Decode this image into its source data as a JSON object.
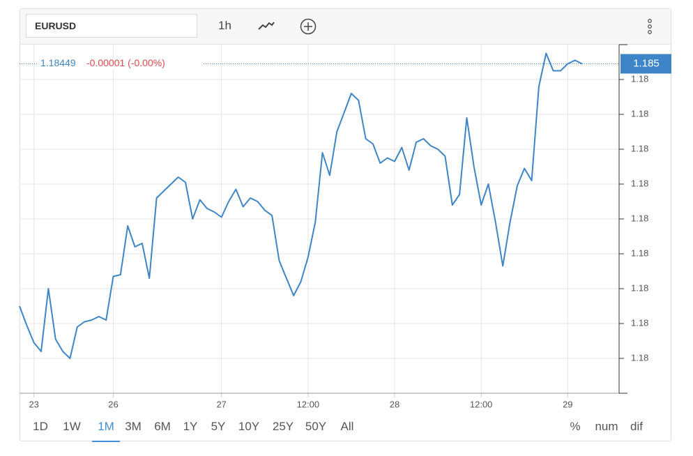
{
  "toolbar": {
    "symbol": "EURUSD",
    "interval": "1h"
  },
  "ranges": {
    "items": [
      "1D",
      "1W",
      "1M",
      "3M",
      "6M",
      "1Y",
      "5Y",
      "10Y",
      "25Y",
      "50Y",
      "All"
    ],
    "active": 2
  },
  "modes": [
    "%",
    "num",
    "dif"
  ],
  "chart_data": {
    "type": "line",
    "last": {
      "value": 1.18449,
      "label": "1.185"
    },
    "change_text": "-0.00001 (-0.00%)",
    "categories": [
      null,
      null,
      "23",
      null,
      null,
      null,
      null,
      null,
      null,
      null,
      null,
      null,
      null,
      "26",
      null,
      null,
      null,
      null,
      null,
      null,
      null,
      null,
      null,
      null,
      null,
      null,
      null,
      null,
      "27",
      null,
      null,
      null,
      null,
      null,
      null,
      null,
      null,
      null,
      null,
      null,
      "12:00",
      null,
      null,
      null,
      null,
      null,
      null,
      null,
      null,
      null,
      null,
      null,
      "28",
      null,
      null,
      null,
      null,
      null,
      null,
      null,
      null,
      null,
      null,
      null,
      "12:00",
      null,
      null,
      null,
      null,
      null,
      null,
      null,
      null,
      null,
      null,
      null,
      "29",
      null,
      null
    ],
    "series": [
      {
        "name": "EURUSD",
        "color": "#3d85c6",
        "values": [
          1.1831,
          1.18299,
          1.18289,
          1.18284,
          1.1832,
          1.18291,
          1.18284,
          1.1828,
          1.18298,
          1.18301,
          1.18302,
          1.18304,
          1.18302,
          1.18327,
          1.18328,
          1.18356,
          1.18344,
          1.18346,
          1.18326,
          1.18372,
          1.18376,
          1.1838,
          1.18384,
          1.18381,
          1.1836,
          1.18371,
          1.18366,
          1.18364,
          1.18361,
          1.1837,
          1.18377,
          1.18367,
          1.18372,
          1.1837,
          1.18365,
          1.18362,
          1.18336,
          1.18326,
          1.18316,
          1.18324,
          1.18338,
          1.18358,
          1.18398,
          1.18385,
          1.1841,
          1.18421,
          1.18432,
          1.18428,
          1.18406,
          1.18403,
          1.18392,
          1.18395,
          1.18393,
          1.18401,
          1.18388,
          1.18404,
          1.18406,
          1.18402,
          1.184,
          1.18396,
          1.18368,
          1.18374,
          1.18418,
          1.1839,
          1.18368,
          1.1838,
          1.18358,
          1.18333,
          1.18358,
          1.18379,
          1.18389,
          1.18382,
          1.18436,
          1.18455,
          1.18445,
          1.18445,
          1.18449,
          1.18451,
          1.18449
        ]
      }
    ],
    "ylim": [
      1.1826,
      1.1846
    ],
    "yticks": [
      {
        "value": 1.1844,
        "label": "1.18"
      },
      {
        "value": 1.1842,
        "label": "1.18"
      },
      {
        "value": 1.184,
        "label": "1.18"
      },
      {
        "value": 1.1838,
        "label": "1.18"
      },
      {
        "value": 1.1836,
        "label": "1.18"
      },
      {
        "value": 1.1834,
        "label": "1.18"
      },
      {
        "value": 1.1832,
        "label": "1.18"
      },
      {
        "value": 1.183,
        "label": "1.18"
      },
      {
        "value": 1.1828,
        "label": "1.18"
      }
    ],
    "grid": true
  }
}
